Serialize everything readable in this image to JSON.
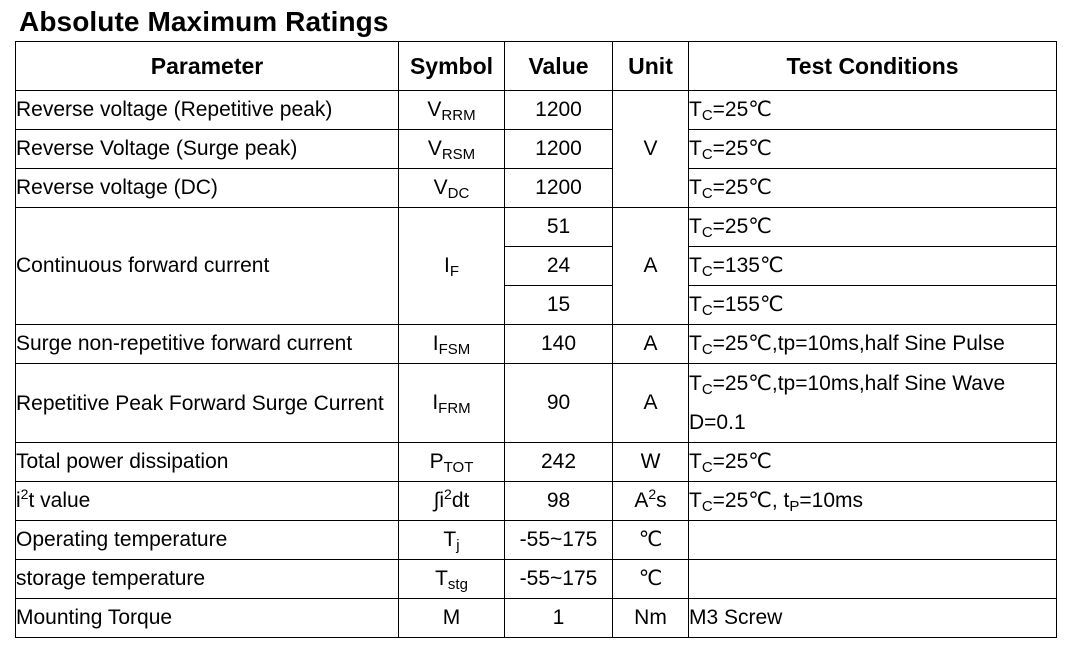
{
  "title": "Absolute Maximum Ratings",
  "headers": {
    "parameter": "Parameter",
    "symbol": "Symbol",
    "value": "Value",
    "unit": "Unit",
    "conditions": "Test Conditions"
  },
  "rows": [
    {
      "parameter": "Reverse voltage (Repetitive peak)",
      "symbol": {
        "main": "V",
        "sub": "RRM"
      },
      "value": "1200",
      "condition": {
        "t": "T",
        "sub": "C",
        "rest": "=25℃"
      }
    },
    {
      "parameter": "Reverse Voltage (Surge peak)",
      "symbol": {
        "main": "V",
        "sub": "RSM"
      },
      "value": "1200",
      "condition": {
        "t": "T",
        "sub": "C",
        "rest": "=25℃"
      }
    },
    {
      "parameter": "Reverse voltage (DC)",
      "symbol": {
        "main": "V",
        "sub": "DC"
      },
      "value": "1200",
      "condition": {
        "t": "T",
        "sub": "C",
        "rest": "=25℃"
      }
    },
    {
      "parameter": "Continuous forward current",
      "symbol": {
        "main": "I",
        "sub": "F"
      },
      "values": [
        "51",
        "24",
        "15"
      ],
      "conditions": [
        {
          "t": "T",
          "sub": "C",
          "rest": "=25℃"
        },
        {
          "t": "T",
          "sub": "C",
          "rest": "=135℃"
        },
        {
          "t": "T",
          "sub": "C",
          "rest": "=155℃"
        }
      ]
    },
    {
      "parameter": "Surge non-repetitive forward current",
      "symbol": {
        "main": "I",
        "sub": "FSM"
      },
      "value": "140",
      "unit": "A",
      "condition": {
        "t": "T",
        "sub": "C",
        "rest": "=25℃,tp=10ms,half Sine Pulse"
      }
    },
    {
      "parameter": "Repetitive Peak Forward Surge Current",
      "symbol": {
        "main": "I",
        "sub": "FRM"
      },
      "value": "90",
      "unit": "A",
      "condition": {
        "t": "T",
        "sub": "C",
        "rest": "=25℃,tp=10ms,half Sine Wave D=0.1"
      }
    },
    {
      "parameter": "Total power dissipation",
      "symbol": {
        "main": "P",
        "sub": "TOT"
      },
      "value": "242",
      "unit": "W",
      "condition": {
        "t": "T",
        "sub": "C",
        "rest": "=25℃"
      }
    },
    {
      "parameter_a": "i",
      "parameter_sup": "2",
      "parameter_b": "t value",
      "symbol": {
        "a": "∫i",
        "sup": "2",
        "b": "dt"
      },
      "value": "98",
      "unit": {
        "a": "A",
        "sup": "2",
        "b": "s"
      },
      "condition": {
        "t": "T",
        "sub": "C",
        "rest": "=25℃, t",
        "sub2": "P",
        "rest2": "=10ms"
      }
    },
    {
      "parameter": "Operating temperature",
      "symbol": {
        "main": "T",
        "sub": "j"
      },
      "value": "-55~175",
      "unit": "℃",
      "condition": ""
    },
    {
      "parameter": "storage temperature",
      "symbol": {
        "main": "T",
        "sub": "stg"
      },
      "value": "-55~175",
      "unit": "℃",
      "condition": ""
    },
    {
      "parameter": "Mounting Torque",
      "symbol": {
        "main": "M"
      },
      "value": "1",
      "unit": "Nm",
      "condition": "M3 Screw"
    }
  ],
  "group_units": {
    "voltage": "V",
    "current": "A"
  }
}
